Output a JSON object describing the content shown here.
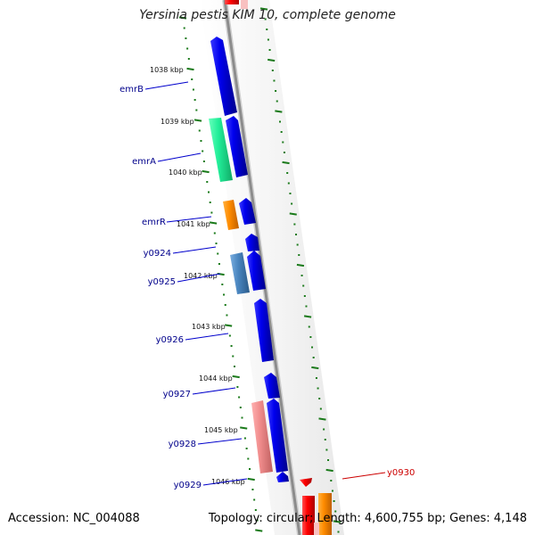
{
  "title": "Yersinia pestis KIM 10, complete genome",
  "accession": "Accession: NC_004088",
  "topology": "Topology: circular; Length: 4,600,755 bp; Genes: 4,148",
  "colors": {
    "backbone": "#8c8c8c",
    "tick": "#1a7a1a",
    "blue_gene": "#0000ee",
    "green_gene": "#22ee99",
    "orange_gene": "#ff8c00",
    "steel_gene": "#4a86c0",
    "pink_gene": "#f08c8c",
    "red_gene": "#ff0000",
    "label_blue": "#00008b",
    "label_red": "#cc0000"
  },
  "kbp_labels": [
    "1038 kbp",
    "1039 kbp",
    "1040 kbp",
    "1041 kbp",
    "1042 kbp",
    "1043 kbp",
    "1044 kbp",
    "1045 kbp",
    "1046 kbp"
  ],
  "gene_labels": [
    {
      "name": "emrB",
      "color": "label_blue"
    },
    {
      "name": "emrA",
      "color": "label_blue"
    },
    {
      "name": "emrR",
      "color": "label_blue"
    },
    {
      "name": "y0924",
      "color": "label_blue"
    },
    {
      "name": "y0925",
      "color": "label_blue"
    },
    {
      "name": "y0926",
      "color": "label_blue"
    },
    {
      "name": "y0927",
      "color": "label_blue"
    },
    {
      "name": "y0928",
      "color": "label_blue"
    },
    {
      "name": "y0929",
      "color": "label_blue"
    },
    {
      "name": "y0930",
      "color": "label_red"
    }
  ]
}
